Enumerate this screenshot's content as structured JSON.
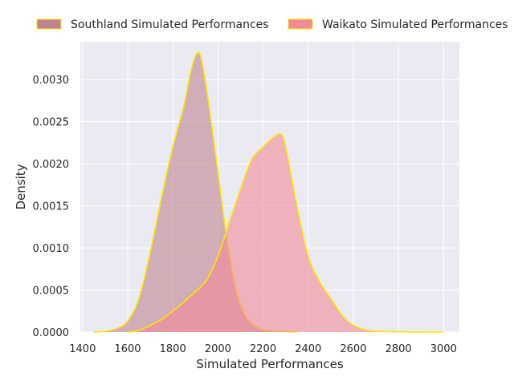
{
  "chart_data": {
    "type": "area",
    "title": "",
    "xlabel": "Simulated Performances",
    "ylabel": "Density",
    "xlim": [
      1390,
      3070
    ],
    "ylim": [
      0,
      0.00345
    ],
    "grid": true,
    "legend_position": "top",
    "x_ticks": [
      "1400",
      "1600",
      "1800",
      "2000",
      "2200",
      "2400",
      "2600",
      "2800",
      "3000"
    ],
    "y_ticks": [
      "0.0000",
      "0.0005",
      "0.0010",
      "0.0015",
      "0.0020",
      "0.0025",
      "0.0030"
    ],
    "series": [
      {
        "name": "Southland Simulated Performances",
        "fill": "#c08390",
        "edge": "#ffe600",
        "x": [
          1450,
          1500,
          1550,
          1600,
          1650,
          1700,
          1750,
          1800,
          1850,
          1880,
          1910,
          1930,
          1960,
          2000,
          2040,
          2080,
          2120,
          2160,
          2200,
          2250,
          2300,
          2350
        ],
        "y": [
          0.0,
          1e-05,
          4e-05,
          0.00013,
          0.0004,
          0.00095,
          0.0016,
          0.0022,
          0.0027,
          0.0031,
          0.00332,
          0.0032,
          0.0027,
          0.0019,
          0.0011,
          0.0005,
          0.0002,
          8e-05,
          3e-05,
          1e-05,
          5e-06,
          0.0
        ]
      },
      {
        "name": "Waikato Simulated Performances",
        "fill": "#f28b96",
        "edge": "#ffe600",
        "x": [
          1600,
          1650,
          1700,
          1750,
          1800,
          1850,
          1900,
          1950,
          2000,
          2050,
          2100,
          2150,
          2200,
          2250,
          2280,
          2300,
          2350,
          2400,
          2450,
          2500,
          2550,
          2600,
          2650,
          2700,
          2800,
          2900,
          3000
        ],
        "y": [
          0.0,
          2e-05,
          8e-05,
          0.00015,
          0.00025,
          0.00036,
          0.00048,
          0.00062,
          0.0009,
          0.0013,
          0.0017,
          0.00205,
          0.0022,
          0.00232,
          0.00235,
          0.0022,
          0.0015,
          0.0009,
          0.0006,
          0.0004,
          0.0002,
          8e-05,
          3e-05,
          1e-05,
          3e-06,
          1e-06,
          0.0
        ]
      }
    ]
  }
}
